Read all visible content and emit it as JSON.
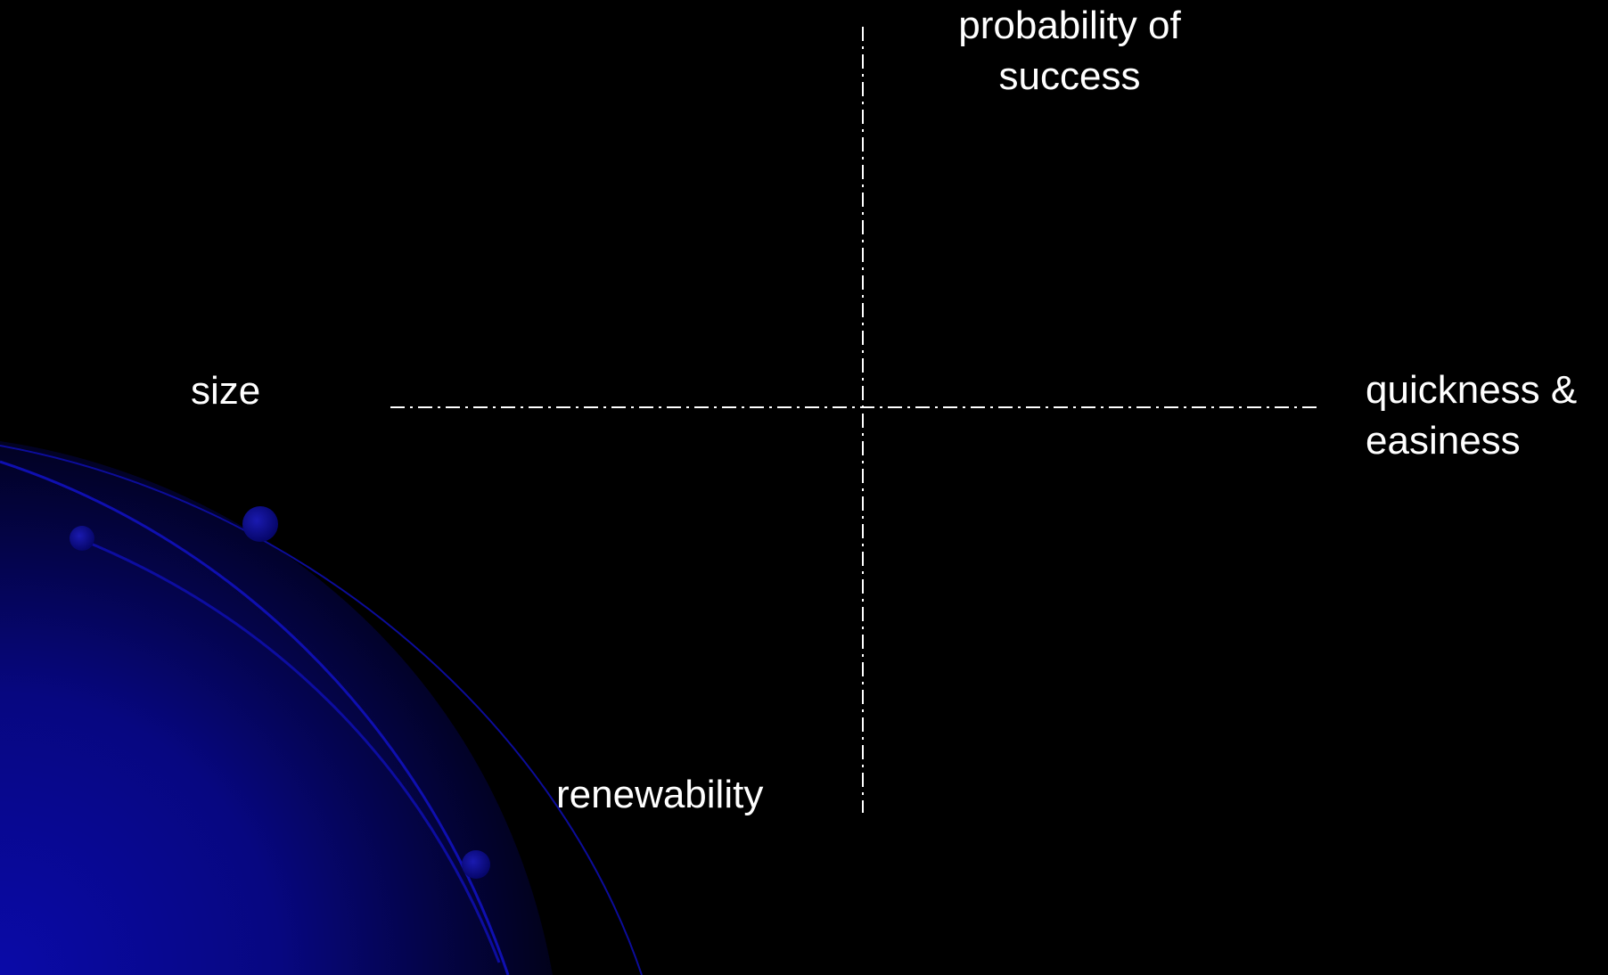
{
  "slide": {
    "background_color": "#000000",
    "accent_color": "#0a0aa8",
    "axis_line_color": "#ffffff"
  },
  "axes": {
    "top": {
      "lines": [
        "probability of",
        "success"
      ]
    },
    "left": {
      "lines": [
        "size"
      ]
    },
    "right": {
      "lines": [
        "quickness &",
        "easiness"
      ]
    },
    "bottom": {
      "lines": [
        "renewability"
      ]
    }
  }
}
